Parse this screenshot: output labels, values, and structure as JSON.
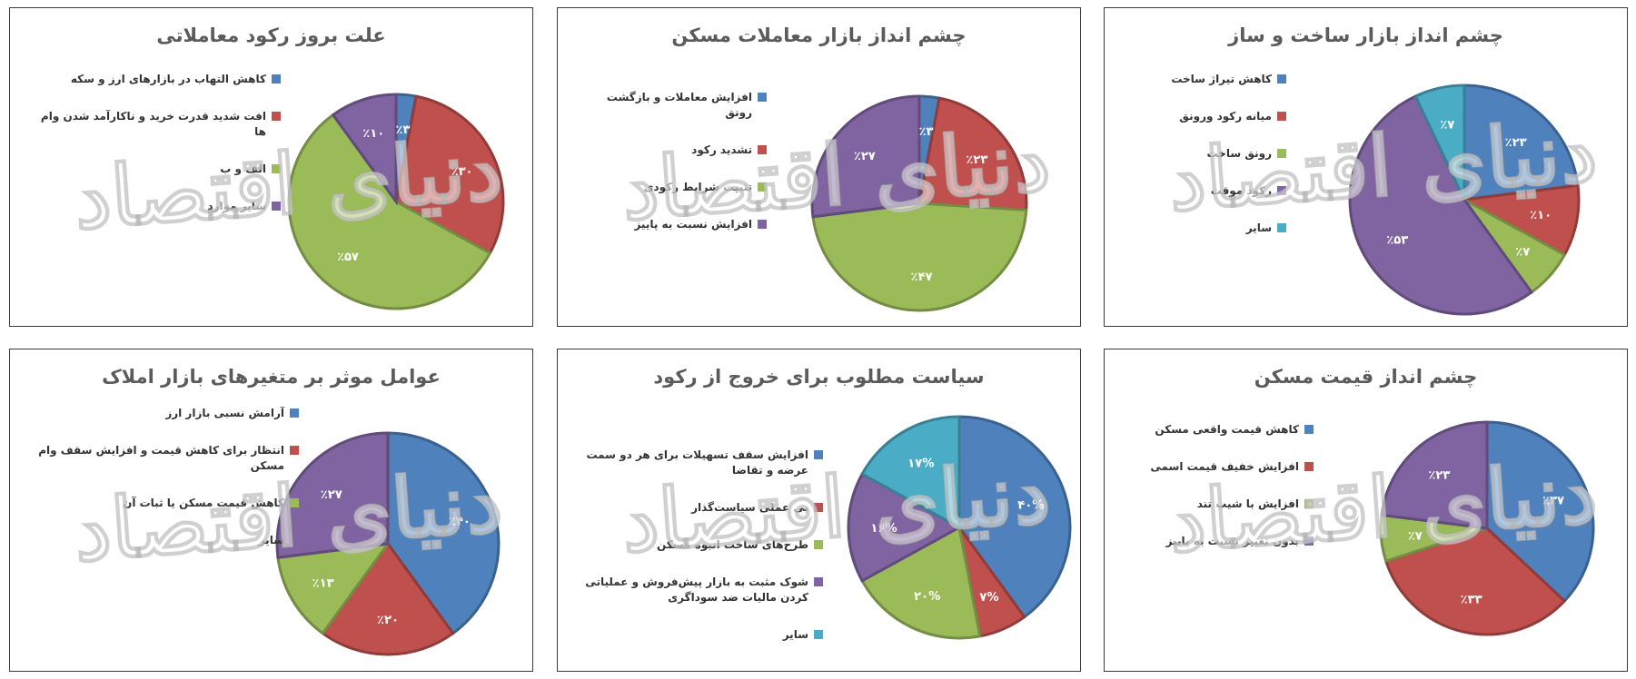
{
  "watermark": "دنیای اقتصاد",
  "colors": {
    "blue": "#4f81bd",
    "red": "#c0504d",
    "green": "#9bbb59",
    "purple": "#8064a2",
    "cyan": "#4bacc6"
  },
  "chart_data": [
    {
      "type": "pie",
      "title": "چشم انداز بازار ساخت و ساز",
      "categories": [
        "کاهش تیراژ ساخت",
        "میانه رکود  ورونق",
        "رونق ساخت",
        "رکود موقت",
        "سایر"
      ],
      "values": [
        23,
        10,
        7,
        53,
        7
      ],
      "labels": [
        "٪۲۳",
        "٪۱۰",
        "٪۷",
        "٪۵۳",
        "٪۷"
      ],
      "colors": [
        "#4f81bd",
        "#c0504d",
        "#9bbb59",
        "#8064a2",
        "#4bacc6"
      ]
    },
    {
      "type": "pie",
      "title": "چشم انداز بازار معاملات مسکن",
      "categories": [
        "افزایش معاملات و بازگشت رونق",
        "تشدید رکود",
        "تثبیت شرایط رکودی",
        "افزایش نسبت به پاییز"
      ],
      "values": [
        3,
        23,
        47,
        27
      ],
      "labels": [
        "٪۳",
        "٪۲۳",
        "٪۴۷",
        "٪۲۷"
      ],
      "colors": [
        "#4f81bd",
        "#c0504d",
        "#9bbb59",
        "#8064a2"
      ]
    },
    {
      "type": "pie",
      "title": "علت بروز رکود معاملاتی",
      "categories": [
        "کاهش التهاب در بازارهای ارز و سکه",
        "افت شدید قدرت خرید  و ناکارآمد شدن وام ها",
        "الف و ب",
        "سایر موارد"
      ],
      "values": [
        3,
        30,
        57,
        10
      ],
      "labels": [
        "٪۳",
        "٪۳۰",
        "٪۵۷",
        "٪۱۰"
      ],
      "colors": [
        "#4f81bd",
        "#c0504d",
        "#9bbb59",
        "#8064a2"
      ]
    },
    {
      "type": "pie",
      "title": "چشم انداز قیمت مسکن",
      "categories": [
        "کاهش قیمت واقعی مسکن",
        "افزایش خفیف قیمت اسمی",
        "افزایش با شیب تند",
        "بدون تغییر نسبت به پاییز"
      ],
      "values": [
        37,
        33,
        7,
        23
      ],
      "labels": [
        "٪۳۷",
        "٪۳۳",
        "٪۷",
        "٪۲۳"
      ],
      "colors": [
        "#4f81bd",
        "#c0504d",
        "#9bbb59",
        "#8064a2"
      ]
    },
    {
      "type": "pie",
      "title": "سیاست مطلوب برای خروج از رکود",
      "categories": [
        "افزایش سقف تسهیلات برای هر دو سمت عرضه و تقاضا",
        "بی عملی سیاست‌گذار",
        "طرح‌های ساخت انبوه مسکن",
        "شوک مثبت به بازار پیش‌فروش و عملیاتی کردن مالیات ضد سوداگری",
        "سایر"
      ],
      "values": [
        40,
        7,
        20,
        16,
        17
      ],
      "labels": [
        "۴۰%",
        "۷%",
        "۲۰%",
        "۱۶%",
        "۱۷%"
      ],
      "colors": [
        "#4f81bd",
        "#c0504d",
        "#9bbb59",
        "#8064a2",
        "#4bacc6"
      ]
    },
    {
      "type": "pie",
      "title": "عوامل موثر بر متغیرهای بازار املاک",
      "categories": [
        "آرامش نسبی بازار ارز",
        "انتظار برای کاهش قیمت و افزایش سقف وام مسکن",
        "کاهش قیمت مسکن یا ثبات آن",
        "سایر"
      ],
      "values": [
        40,
        20,
        13,
        27
      ],
      "labels": [
        "٪۴۰",
        "٪۲۰",
        "٪۱۳",
        "٪۲۷"
      ],
      "colors": [
        "#4f81bd",
        "#c0504d",
        "#9bbb59",
        "#8064a2"
      ]
    }
  ]
}
